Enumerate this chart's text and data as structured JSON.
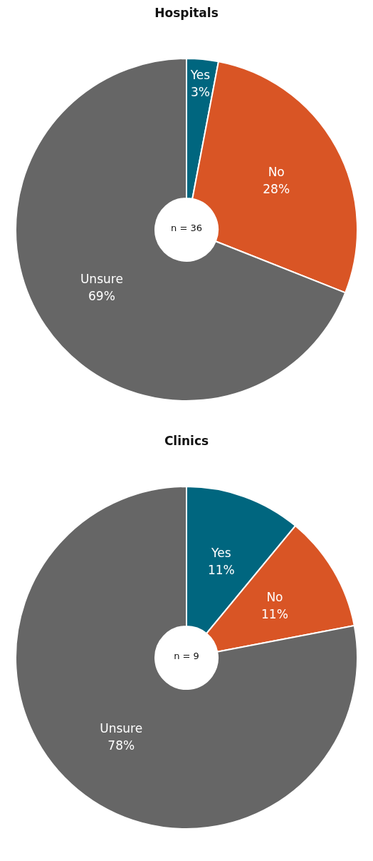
{
  "chart_data": [
    {
      "type": "donut",
      "title": "Hospitals",
      "categories": [
        "Yes",
        "No",
        "Unsure"
      ],
      "values": [
        3,
        28,
        69
      ],
      "colors": [
        "#00667f",
        "#d95525",
        "#666666"
      ],
      "value_labels": [
        "3%",
        "28%",
        "69%"
      ],
      "annotations": [
        "n = 36"
      ]
    },
    {
      "type": "donut",
      "title": "Clinics",
      "categories": [
        "Yes",
        "No",
        "Unsure"
      ],
      "values": [
        11,
        11,
        78
      ],
      "colors": [
        "#00667f",
        "#d95525",
        "#666666"
      ],
      "value_labels": [
        "11%",
        "11%",
        "78%"
      ],
      "annotations": [
        "n = 9"
      ]
    }
  ]
}
